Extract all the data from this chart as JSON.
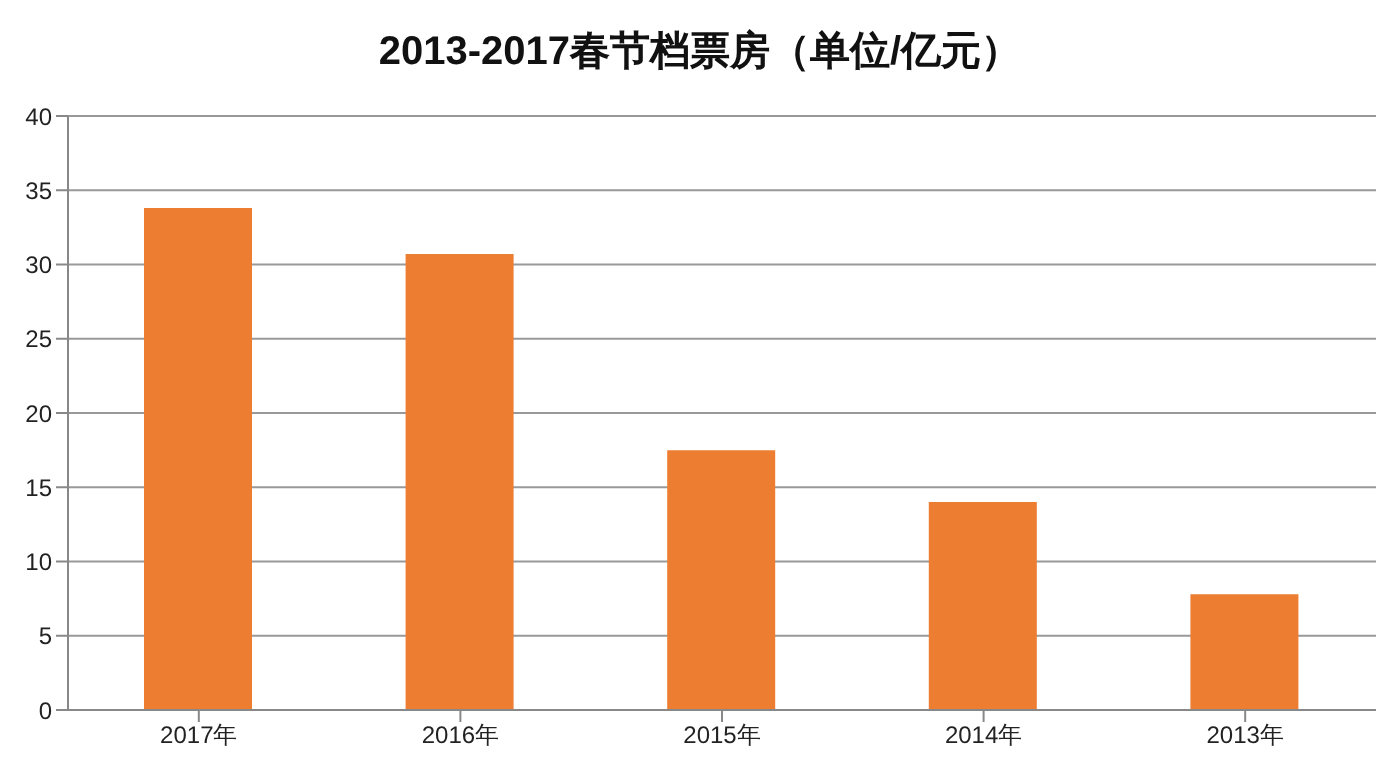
{
  "chart_data": {
    "type": "bar",
    "title": "2013-2017春节档票房（单位/亿元）",
    "categories": [
      "2017年",
      "2016年",
      "2015年",
      "2014年",
      "2013年"
    ],
    "values": [
      33.8,
      30.7,
      17.5,
      14.0,
      7.8
    ],
    "color": "#ed7d31",
    "ylim": [
      0,
      40
    ],
    "yticks": [
      0,
      5,
      10,
      15,
      20,
      25,
      30,
      35,
      40
    ],
    "grid": "y"
  }
}
